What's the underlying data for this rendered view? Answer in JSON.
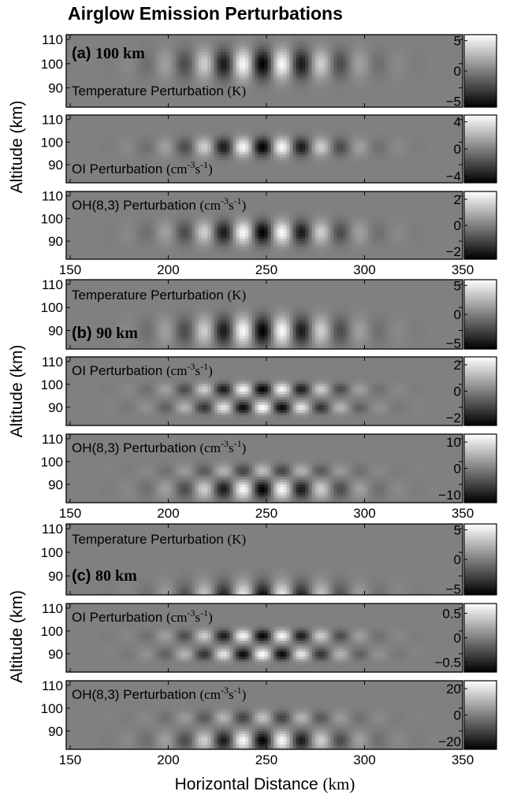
{
  "title": "Airglow Emission Perturbations",
  "chart_data": {
    "type": "heatmap",
    "title": "Airglow Emission Perturbations",
    "xlabel": "Horizontal Distance",
    "xlabel_unit": "(km)",
    "ylabel": "Altitude (km)",
    "xlim": [
      148,
      350
    ],
    "xticks": [
      150,
      200,
      250,
      300,
      350
    ],
    "ylim": [
      82,
      112
    ],
    "yticks": [
      90,
      100,
      110
    ],
    "groups": [
      {
        "label": "(a)",
        "altitude_label": "100 km",
        "wave_altitude_km": 100,
        "panels": [
          {
            "name": "Temperature Perturbation",
            "unit": "(K)",
            "clim": [
              -6,
              6
            ],
            "cbar_ticks": [
              5,
              0,
              -5
            ],
            "cbar_tick_labels": [
              "5",
              "0",
              "−5"
            ]
          },
          {
            "name": "OI Perturbation",
            "unit_base": "(cm",
            "unit_sup1": "-3",
            "unit_mid": "s",
            "unit_sup2": "-1",
            "unit_end": ")",
            "clim": [
              -5,
              5
            ],
            "cbar_ticks": [
              4,
              0,
              -4
            ],
            "cbar_tick_labels": [
              "4",
              "0",
              "−4"
            ]
          },
          {
            "name": "OH(8,3) Perturbation",
            "unit_base": "(cm",
            "unit_sup1": "-3",
            "unit_mid": "s",
            "unit_sup2": "-1",
            "unit_end": ")",
            "clim": [
              -2.6,
              2.6
            ],
            "cbar_ticks": [
              2,
              0,
              -2
            ],
            "cbar_tick_labels": [
              "2",
              "0",
              "−2"
            ]
          }
        ]
      },
      {
        "label": "(b)",
        "altitude_label": "90 km",
        "wave_altitude_km": 90,
        "panels": [
          {
            "name": "Temperature Perturbation",
            "unit": "(K)",
            "clim": [
              -6,
              6
            ],
            "cbar_ticks": [
              5,
              0,
              -5
            ],
            "cbar_tick_labels": [
              "5",
              "0",
              "−5"
            ]
          },
          {
            "name": "OI Perturbation",
            "unit_base": "(cm",
            "unit_sup1": "-3",
            "unit_mid": "s",
            "unit_sup2": "-1",
            "unit_end": ")",
            "clim": [
              -2.6,
              2.6
            ],
            "cbar_ticks": [
              2,
              0,
              -2
            ],
            "cbar_tick_labels": [
              "2",
              "0",
              "−2"
            ]
          },
          {
            "name": "OH(8,3) Perturbation",
            "unit_base": "(cm",
            "unit_sup1": "-3",
            "unit_mid": "s",
            "unit_sup2": "-1",
            "unit_end": ")",
            "clim": [
              -13,
              13
            ],
            "cbar_ticks": [
              10,
              0,
              -10
            ],
            "cbar_tick_labels": [
              "10",
              "0",
              "−10"
            ]
          }
        ]
      },
      {
        "label": "(c)",
        "altitude_label": "80 km",
        "wave_altitude_km": 80,
        "panels": [
          {
            "name": "Temperature Perturbation",
            "unit": "(K)",
            "clim": [
              -6,
              6
            ],
            "cbar_ticks": [
              5,
              0,
              -5
            ],
            "cbar_tick_labels": [
              "5",
              "0",
              "−5"
            ]
          },
          {
            "name": "OI Perturbation",
            "unit_base": "(cm",
            "unit_sup1": "-3",
            "unit_mid": "s",
            "unit_sup2": "-1",
            "unit_end": ")",
            "clim": [
              -0.7,
              0.7
            ],
            "cbar_ticks": [
              0.5,
              0,
              -0.5
            ],
            "cbar_tick_labels": [
              "0.5",
              "0",
              "−0.5"
            ]
          },
          {
            "name": "OH(8,3) Perturbation",
            "unit_base": "(cm",
            "unit_sup1": "-3",
            "unit_mid": "s",
            "unit_sup2": "-1",
            "unit_end": ")",
            "clim": [
              -26,
              26
            ],
            "cbar_ticks": [
              20,
              0,
              -20
            ],
            "cbar_tick_labels": [
              "20",
              "0",
              "−20"
            ]
          }
        ]
      }
    ]
  }
}
